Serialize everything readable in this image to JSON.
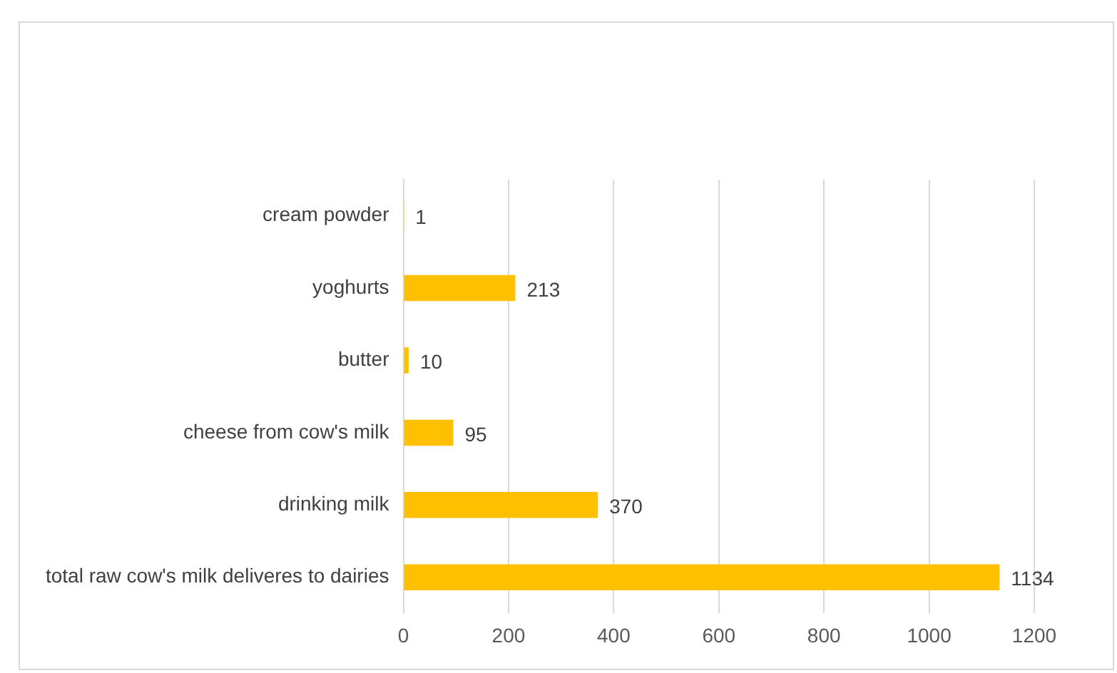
{
  "chart_data": {
    "type": "bar",
    "orientation": "horizontal",
    "categories": [
      "cream powder",
      "yoghurts",
      "butter",
      "cheese from cow's milk",
      "drinking milk",
      "total raw cow's milk deliveres to dairies"
    ],
    "values": [
      1,
      213,
      10,
      95,
      370,
      1134
    ],
    "color": "#ffc000",
    "xlim": [
      0,
      1200
    ],
    "xticks": [
      0,
      200,
      400,
      600,
      800,
      1000,
      1200
    ],
    "grid": "x",
    "data_labels": true,
    "legend": false
  }
}
